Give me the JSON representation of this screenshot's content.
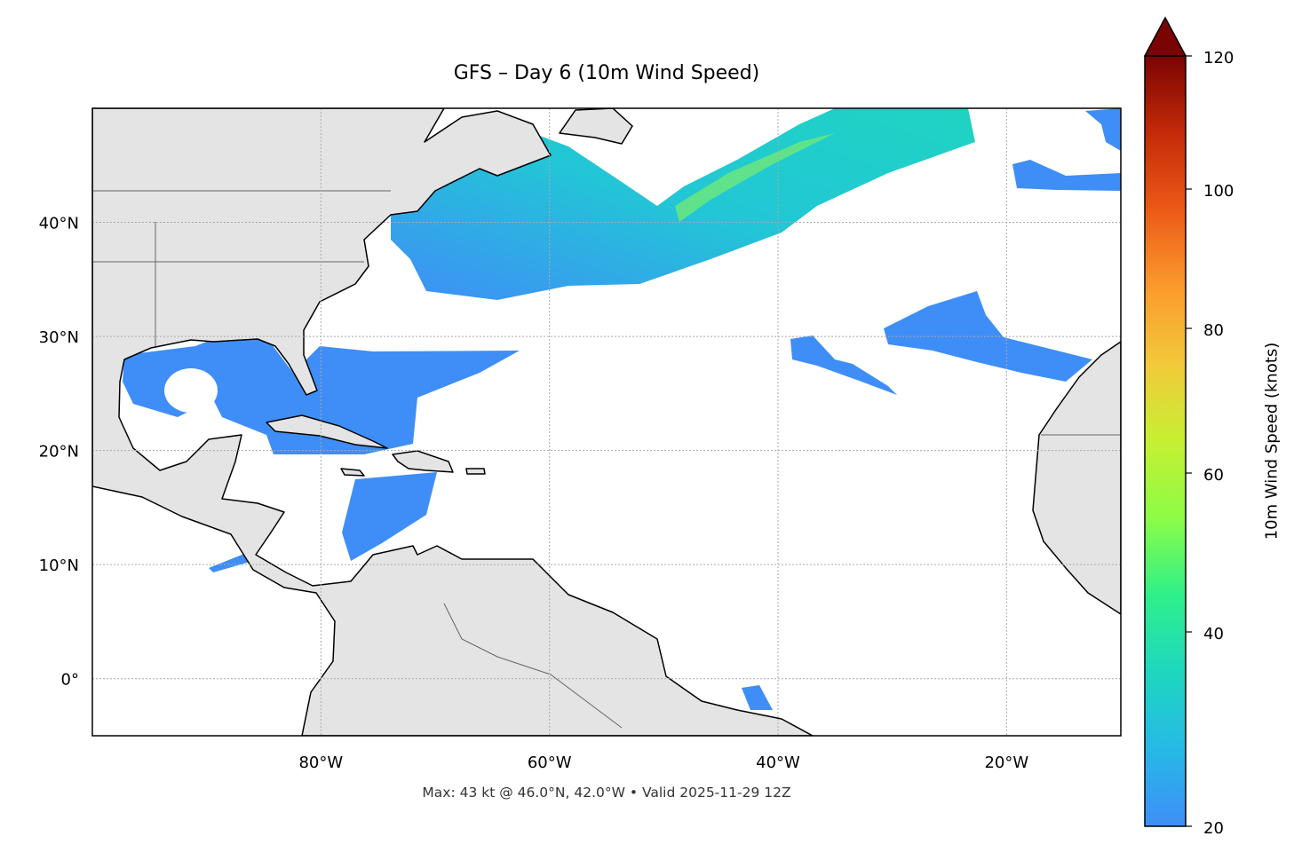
{
  "title": "GFS – Day 6 (10m Wind Speed)",
  "footer": "Max: 43 kt @ 46.0°N, 42.0°W • Valid 2025-11-29 12Z",
  "chart_data": {
    "type": "heatmap",
    "title": "GFS – Day 6 (10m Wind Speed)",
    "projection": "plate carree",
    "extent": {
      "lon": [
        -100,
        -10
      ],
      "lat": [
        -5,
        50
      ]
    },
    "grid": true,
    "x_ticks": [
      {
        "value": -80,
        "label": "80°W"
      },
      {
        "value": -60,
        "label": "60°W"
      },
      {
        "value": -40,
        "label": "40°W"
      },
      {
        "value": -20,
        "label": "20°W"
      }
    ],
    "y_ticks": [
      {
        "value": 40,
        "label": "40°N"
      },
      {
        "value": 30,
        "label": "30°N"
      },
      {
        "value": 20,
        "label": "20°N"
      },
      {
        "value": 10,
        "label": "10°N"
      },
      {
        "value": 0,
        "label": "0°"
      }
    ],
    "colorbar": {
      "label": "10m Wind Speed (knots)",
      "range": [
        20,
        120
      ],
      "extend": "max",
      "colormap": "turbo",
      "ticks": [
        "20",
        "40",
        "60",
        "80",
        "100",
        "120"
      ]
    },
    "max": {
      "value_kt": 43,
      "lat": 46.0,
      "lon": -42.0
    },
    "valid": "2025-11-29 12Z",
    "colors": {
      "land": "#e4e4e4",
      "wind_low": "#3f8ef7",
      "wind_mid": "#1fcfc8",
      "wind_high": "#8af050"
    }
  }
}
